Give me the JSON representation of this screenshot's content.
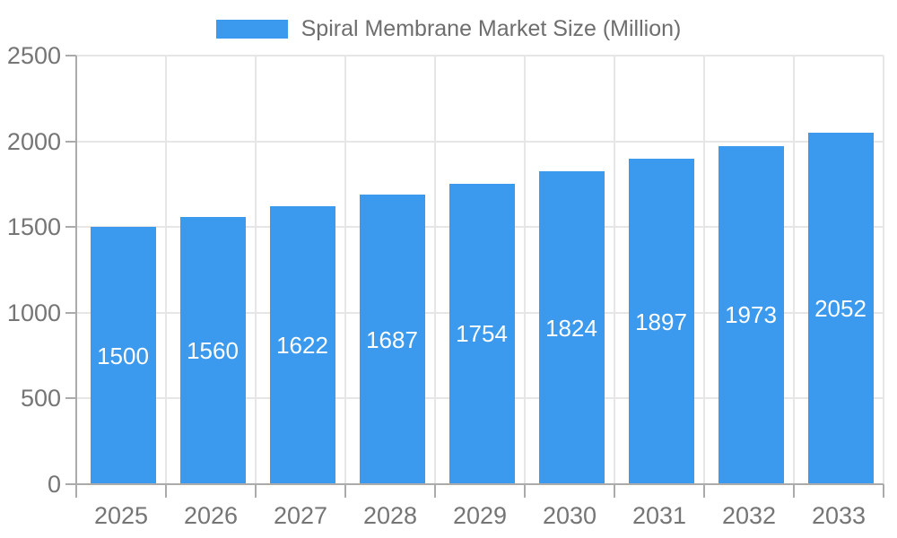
{
  "legend": {
    "label": "Spiral Membrane Market Size (Million)"
  },
  "chart_data": {
    "type": "bar",
    "title": "Spiral Membrane Market Size (Million)",
    "categories": [
      "2025",
      "2026",
      "2027",
      "2028",
      "2029",
      "2030",
      "2031",
      "2032",
      "2033"
    ],
    "values": [
      1500,
      1560,
      1622,
      1687,
      1754,
      1824,
      1897,
      1973,
      2052
    ],
    "series_name": "Spiral Membrane Market Size (Million)",
    "xlabel": "",
    "ylabel": "",
    "ylim": [
      0,
      2500
    ],
    "yticks": [
      0,
      500,
      1000,
      1500,
      2000,
      2500
    ],
    "grid": true,
    "legend_position": "top",
    "bar_labels_visible": true,
    "colors": {
      "bar": "#3B99EE",
      "bar_label_text": "#FFFFFF",
      "axis_text": "#757575",
      "legend_text": "#6E6E6E",
      "grid_line": "#E6E6E6",
      "axis_line": "#ABABAB",
      "background": "#FFFFFF"
    }
  }
}
